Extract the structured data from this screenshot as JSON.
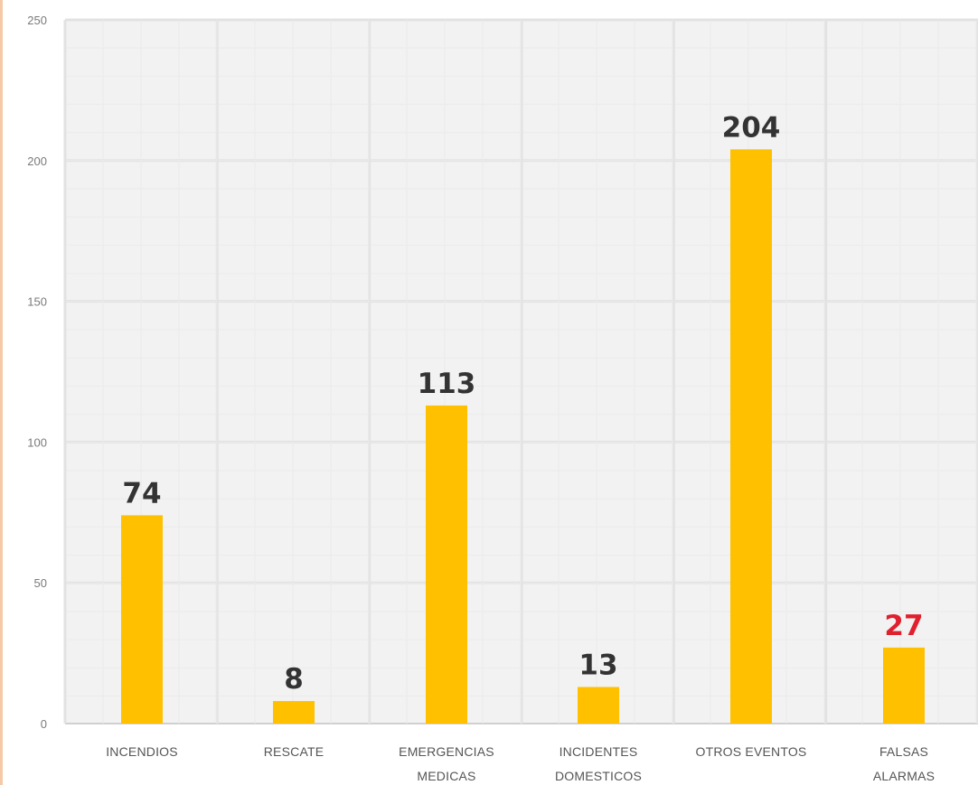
{
  "chart_data": {
    "type": "bar",
    "categories": [
      [
        "INCENDIOS"
      ],
      [
        "RESCATE"
      ],
      [
        "EMERGENCIAS",
        "MEDICAS"
      ],
      [
        "INCIDENTES",
        "DOMESTICOS"
      ],
      [
        "OTROS EVENTOS"
      ],
      [
        "FALSAS",
        "ALARMAS"
      ]
    ],
    "values": [
      74,
      8,
      113,
      13,
      204,
      27
    ],
    "data_labels": [
      "74",
      "8",
      "113",
      "13",
      "204",
      "27"
    ],
    "label_colors": [
      "#333333",
      "#333333",
      "#333333",
      "#333333",
      "#333333",
      "#e0202e"
    ],
    "bar_color": "#ffc000",
    "ylim": [
      0,
      250
    ],
    "yticks": [
      0,
      50,
      100,
      150,
      200,
      250
    ],
    "ytick_labels": [
      "0",
      "50",
      "100",
      "150",
      "200",
      "250"
    ],
    "grid": true,
    "title": "",
    "xlabel": "",
    "ylabel": ""
  }
}
